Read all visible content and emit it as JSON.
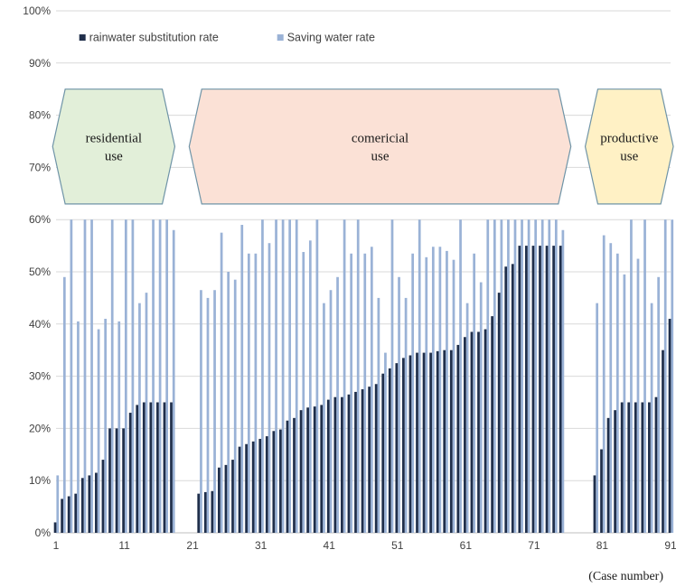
{
  "chart_data": {
    "type": "bar",
    "title": "",
    "xlabel": "(Case number)",
    "ylabel": "",
    "ylim": [
      0,
      100
    ],
    "x_range": [
      1,
      91
    ],
    "y_ticks": [
      "0%",
      "10%",
      "20%",
      "30%",
      "40%",
      "50%",
      "60%",
      "70%",
      "80%",
      "90%",
      "100%"
    ],
    "x_ticks": [
      1,
      11,
      21,
      31,
      41,
      51,
      61,
      71,
      81,
      91
    ],
    "grid": "horizontal",
    "legend_position": "top-left",
    "legend": [
      {
        "label": "rainwater substitution rate",
        "color": "#1f2e4a"
      },
      {
        "label": "Saving water rate",
        "color": "#9ab2d6"
      }
    ],
    "bar_order": "overlapping",
    "zones": [
      {
        "label_lines": [
          "residential",
          "use"
        ],
        "from": 1,
        "to": 18,
        "fill": "#e2efd9",
        "stroke": "#6f94a7"
      },
      {
        "label_lines": [
          "comericial",
          "use"
        ],
        "from": 21,
        "to": 76,
        "fill": "#fbe1d6",
        "stroke": "#6f94a7"
      },
      {
        "label_lines": [
          "productive",
          "use"
        ],
        "from": 79,
        "to": 91,
        "fill": "#fff1c5",
        "stroke": "#6f94a7"
      }
    ],
    "series": [
      {
        "name": "rainwater substitution rate",
        "color": "#1f2e4a",
        "x": [
          1,
          2,
          3,
          4,
          5,
          6,
          7,
          8,
          9,
          10,
          11,
          12,
          13,
          14,
          15,
          16,
          17,
          18,
          22,
          23,
          24,
          25,
          26,
          27,
          28,
          29,
          30,
          31,
          32,
          33,
          34,
          35,
          36,
          37,
          38,
          39,
          40,
          41,
          42,
          43,
          44,
          45,
          46,
          47,
          48,
          49,
          50,
          51,
          52,
          53,
          54,
          55,
          56,
          57,
          58,
          59,
          60,
          61,
          62,
          63,
          64,
          65,
          66,
          67,
          68,
          69,
          70,
          71,
          72,
          73,
          74,
          75,
          80,
          81,
          82,
          83,
          84,
          85,
          86,
          87,
          88,
          89,
          90,
          91
        ],
        "values": [
          2,
          6.5,
          7,
          7.5,
          10.5,
          11,
          11.5,
          14,
          20,
          20,
          20,
          23,
          24.5,
          25,
          25,
          25,
          25,
          25,
          7.5,
          7.8,
          8,
          12.5,
          13,
          14,
          16.5,
          17,
          17.5,
          18,
          18.5,
          19.5,
          19.8,
          21.5,
          22,
          23.5,
          24,
          24.2,
          24.5,
          25.5,
          26,
          26,
          26.5,
          27,
          27.5,
          28,
          28.5,
          30.5,
          31.5,
          32.5,
          33.5,
          34,
          34.5,
          34.5,
          34.5,
          34.8,
          35,
          35,
          36,
          37.5,
          38.5,
          38.5,
          39,
          41.5,
          46,
          51,
          51.5,
          55,
          55,
          55,
          55,
          55,
          55,
          55,
          11,
          16,
          22,
          23.5,
          25,
          25,
          25,
          25,
          25,
          26,
          35,
          41
        ]
      },
      {
        "name": "Saving water rate",
        "color": "#9ab2d6",
        "x": [
          1,
          2,
          3,
          4,
          5,
          6,
          7,
          8,
          9,
          10,
          11,
          12,
          13,
          14,
          15,
          16,
          17,
          18,
          22,
          23,
          24,
          25,
          26,
          27,
          28,
          29,
          30,
          31,
          32,
          33,
          34,
          35,
          36,
          37,
          38,
          39,
          40,
          41,
          42,
          43,
          44,
          45,
          46,
          47,
          48,
          49,
          50,
          51,
          52,
          53,
          54,
          55,
          56,
          57,
          58,
          59,
          60,
          61,
          62,
          63,
          64,
          65,
          66,
          67,
          68,
          69,
          70,
          71,
          72,
          73,
          74,
          75,
          80,
          81,
          82,
          83,
          84,
          85,
          86,
          87,
          88,
          89,
          90,
          91
        ],
        "values": [
          11,
          49,
          60,
          40.5,
          60,
          60,
          39,
          41,
          60,
          40.5,
          60,
          60,
          44,
          46,
          60,
          60,
          60,
          58,
          46.5,
          45,
          46.5,
          57.5,
          50,
          48.5,
          59,
          53.5,
          53.5,
          60,
          55.5,
          60,
          60,
          60,
          60,
          53.8,
          56,
          60,
          44,
          46.5,
          49,
          60,
          53.5,
          60,
          53.5,
          54.8,
          45,
          34.5,
          60,
          49,
          45,
          53.5,
          60,
          52.8,
          54.8,
          54.8,
          54,
          52.3,
          60,
          44,
          53.5,
          48,
          60,
          60,
          60,
          60,
          60,
          60,
          60,
          60,
          60,
          60,
          60,
          58,
          44,
          57,
          55.5,
          53.5,
          49.5,
          60,
          52.5,
          60,
          44,
          49,
          60,
          60
        ]
      }
    ]
  }
}
